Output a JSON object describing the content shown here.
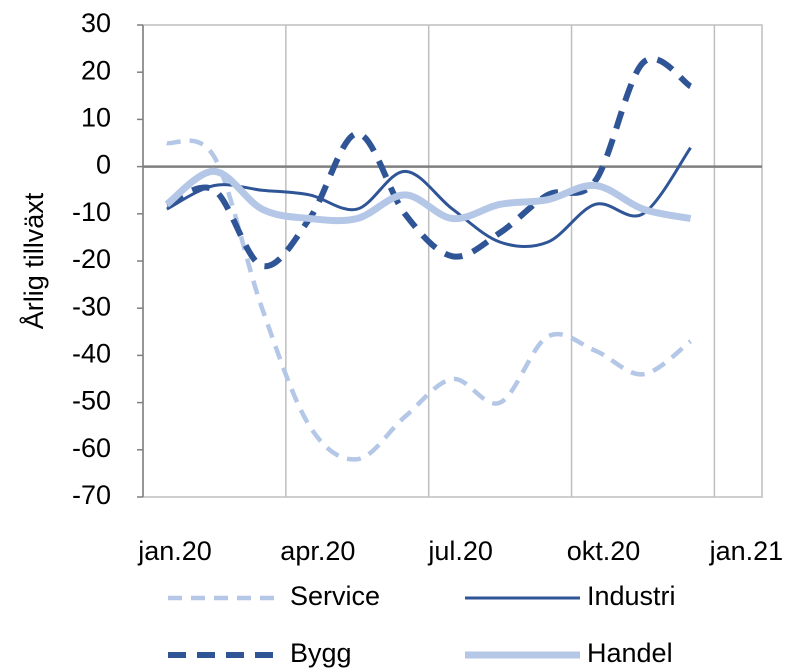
{
  "chart_data": {
    "type": "line",
    "y_label": "Årlig tillväxt",
    "x": [
      0.5,
      1.5,
      2.5,
      3.5,
      4.5,
      5.5,
      6.5,
      7.5,
      8.5,
      9.5,
      10.5,
      11.5
    ],
    "xlim": [
      0,
      13
    ],
    "xticks": [
      {
        "value": 0,
        "label": "jan.20"
      },
      {
        "value": 3,
        "label": "apr.20"
      },
      {
        "value": 6,
        "label": "jul.20"
      },
      {
        "value": 9,
        "label": "okt.20"
      },
      {
        "value": 12,
        "label": "jan.21"
      }
    ],
    "ylim": [
      -70,
      30
    ],
    "yticks": [
      -70,
      -60,
      -50,
      -40,
      -30,
      -20,
      -10,
      0,
      10,
      20,
      30
    ],
    "grid": "x",
    "series": [
      {
        "name": "Service",
        "color": "#b4c7e7",
        "dash": "dashed",
        "values": [
          5,
          2,
          -30,
          -55,
          -62,
          -53,
          -45,
          -50,
          -36,
          -39,
          -44,
          -37
        ]
      },
      {
        "name": "Industri",
        "color": "#2f5597",
        "dash": "solid",
        "values": [
          -9,
          -4,
          -5,
          -6,
          -9,
          -1,
          -9,
          -16,
          -16,
          -8,
          -10,
          4
        ]
      },
      {
        "name": "Bygg",
        "color": "#2f5597",
        "dash": "dashed",
        "values": [
          -8,
          -5,
          -21,
          -11,
          7,
          -10,
          -19,
          -14,
          -6,
          -3,
          22,
          17
        ]
      },
      {
        "name": "Handel",
        "color": "#b4c7e7",
        "dash": "solid",
        "values": [
          -8,
          -1,
          -9,
          -11,
          -11,
          -6,
          -11,
          -8,
          -7,
          -4,
          -9,
          -11
        ]
      }
    ]
  }
}
